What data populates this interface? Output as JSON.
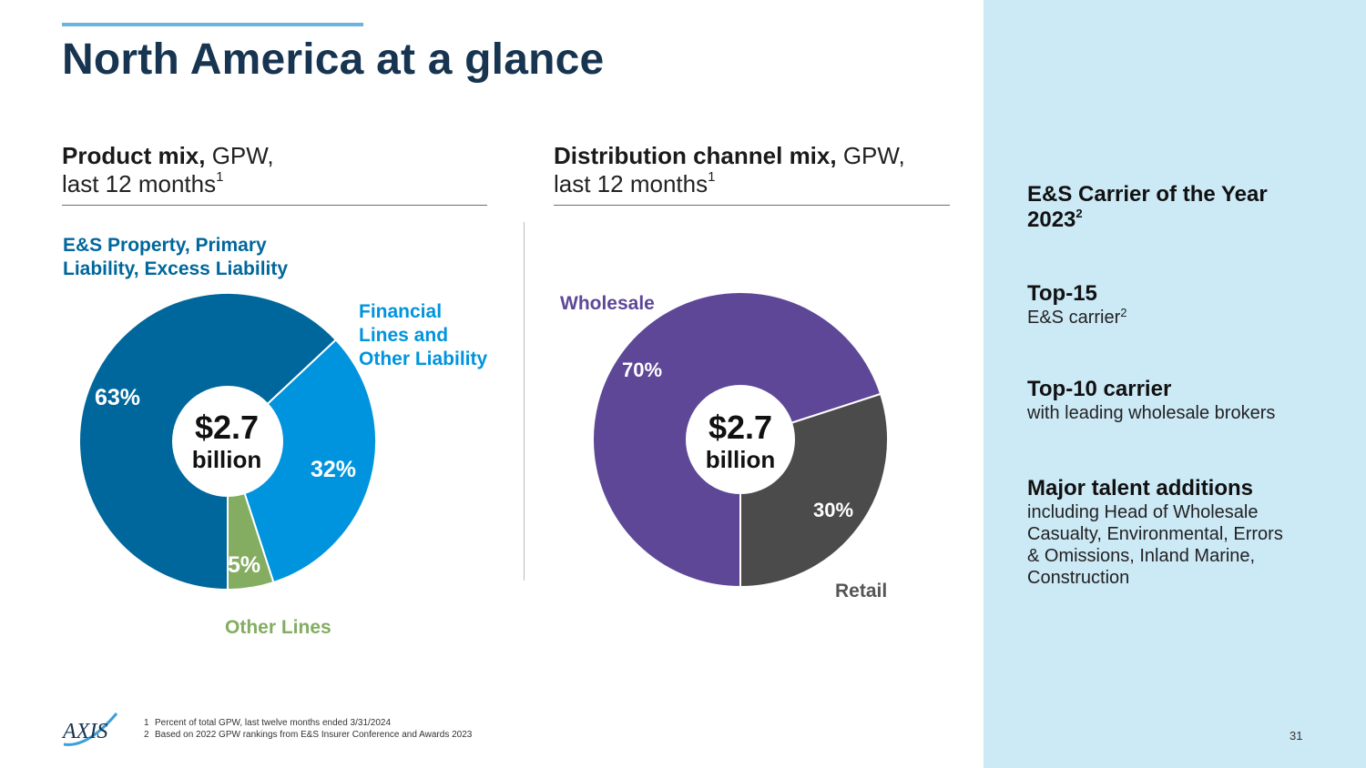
{
  "title": "North America at a glance",
  "product_section": {
    "heading_bold": "Product mix,",
    "heading_rest": " GPW,",
    "heading_line2": "last 12 months",
    "footnote_ref": "1"
  },
  "distribution_section": {
    "heading_bold": "Distribution channel mix,",
    "heading_rest": " GPW,",
    "heading_line2": "last 12 months",
    "footnote_ref": "1"
  },
  "center_label": {
    "amount": "$2.7",
    "unit": "billion"
  },
  "chart_data": [
    {
      "type": "pie",
      "title": "Product mix, GPW, last 12 months",
      "total_label": "$2.7 billion",
      "categories": [
        "E&S Property, Primary Liability, Excess Liability",
        "Financial Lines and Other Liability",
        "Other Lines"
      ],
      "category_lines": [
        [
          "E&S Property, Primary",
          "Liability, Excess Liability"
        ],
        [
          "Financial",
          "Lines and",
          "Other Liability"
        ],
        [
          "Other Lines"
        ]
      ],
      "values": [
        63,
        32,
        5
      ],
      "value_labels": [
        "63%",
        "32%",
        "5%"
      ],
      "colors": [
        "#00679c",
        "#0094de",
        "#84ad62"
      ],
      "label_colors": [
        "#00679c",
        "#0094de",
        "#84ad62"
      ]
    },
    {
      "type": "pie",
      "title": "Distribution channel mix, GPW, last 12 months",
      "total_label": "$2.7 billion",
      "categories": [
        "Wholesale",
        "Retail"
      ],
      "values": [
        70,
        30
      ],
      "value_labels": [
        "70%",
        "30%"
      ],
      "colors": [
        "#5e4797",
        "#4b4b4b"
      ],
      "label_colors": [
        "#5e4797",
        "#555555"
      ]
    }
  ],
  "sidebar": {
    "facts": [
      {
        "heading": "E&S Carrier of the Year",
        "heading_line2": "2023",
        "sup": "2",
        "text": ""
      },
      {
        "heading": "Top-15",
        "text": "E&S carrier",
        "sup": "2"
      },
      {
        "heading": "Top-10 carrier",
        "text": "with leading wholesale brokers"
      },
      {
        "heading": "Major talent additions",
        "text_lines": [
          "including Head of Wholesale",
          "Casualty, Environmental, Errors",
          "& Omissions, Inland Marine,",
          "Construction"
        ]
      }
    ]
  },
  "footnotes": [
    {
      "num": "1",
      "text": "Percent of total GPW, last twelve months ended 3/31/2024"
    },
    {
      "num": "2",
      "text": "Based on 2022 GPW rankings from E&S Insurer Conference and Awards 2023"
    }
  ],
  "logo_text": "AXIS",
  "page_number": "31"
}
